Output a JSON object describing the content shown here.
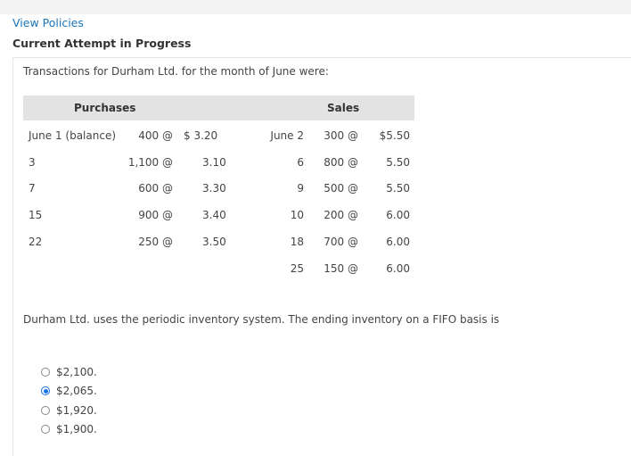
{
  "header": {
    "view_policies": "View Policies",
    "attempt_status": "Current Attempt in Progress"
  },
  "question": {
    "intro": "Transactions for Durham Ltd. for the month of June were:",
    "prompt": "Durham Ltd. uses the periodic inventory system. The ending inventory on a FIFO basis is"
  },
  "table": {
    "purchases_header": "Purchases",
    "sales_header": "Sales",
    "purchases": [
      {
        "date": "June 1 (balance)",
        "qty": "400 @",
        "price": "$  3.20"
      },
      {
        "date": "3",
        "qty": "1,100 @",
        "price": "3.10"
      },
      {
        "date": "7",
        "qty": "600 @",
        "price": "3.30"
      },
      {
        "date": "15",
        "qty": "900 @",
        "price": "3.40"
      },
      {
        "date": "22",
        "qty": "250 @",
        "price": "3.50"
      }
    ],
    "sales": [
      {
        "date": "June 2",
        "qty": "300 @",
        "price": "$5.50"
      },
      {
        "date": "6",
        "qty": "800 @",
        "price": "5.50"
      },
      {
        "date": "9",
        "qty": "500 @",
        "price": "5.50"
      },
      {
        "date": "10",
        "qty": "200 @",
        "price": "6.00"
      },
      {
        "date": "18",
        "qty": "700 @",
        "price": "6.00"
      },
      {
        "date": "25",
        "qty": "150 @",
        "price": "6.00"
      }
    ]
  },
  "options": [
    {
      "label": "$2,100.",
      "selected": false
    },
    {
      "label": "$2,065.",
      "selected": true
    },
    {
      "label": "$1,920.",
      "selected": false
    },
    {
      "label": "$1,900.",
      "selected": false
    }
  ],
  "colors": {
    "link": "#1b75bb",
    "radio_selected": "#1a73e8",
    "table_header_bg": "#e3e3e3"
  }
}
